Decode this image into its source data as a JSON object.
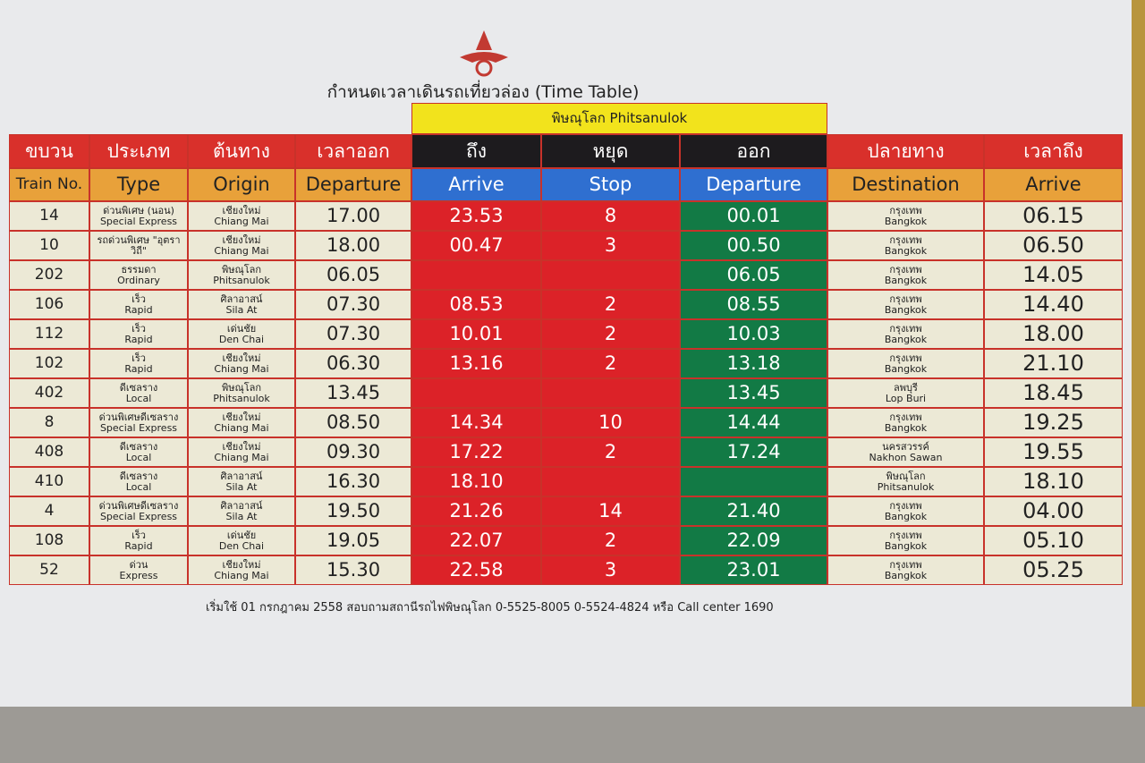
{
  "title": "กำหนดเวลาเดินรถเที่ยวล่อง (Time Table)",
  "section": "พิษณุโลก Phitsanulok",
  "columns": [
    {
      "th": "ขบวน",
      "en": "Train No."
    },
    {
      "th": "ประเภท",
      "en": "Type"
    },
    {
      "th": "ต้นทาง",
      "en": "Origin"
    },
    {
      "th": "เวลาออก",
      "en": "Departure"
    },
    {
      "th": "ถึง",
      "en": "Arrive"
    },
    {
      "th": "หยุด",
      "en": "Stop"
    },
    {
      "th": "ออก",
      "en": "Departure"
    },
    {
      "th": "ปลายทาง",
      "en": "Destination"
    },
    {
      "th": "เวลาถึง",
      "en": "Arrive"
    }
  ],
  "rows": [
    {
      "train_no": "14",
      "type_th": "ด่วนพิเศษ (นอน)",
      "type_en": "Special Express",
      "origin_th": "เชียงใหม่",
      "origin_en": "Chiang Mai",
      "departure": "17.00",
      "arrive": "23.53",
      "stop": "8",
      "phitsanulok_departure": "00.01",
      "destination_th": "กรุงเทพ",
      "destination_en": "Bangkok",
      "destination_arrive": "06.15"
    },
    {
      "train_no": "10",
      "type_th": "รถด่วนพิเศษ \"อุตราวิถี\"",
      "type_en": null,
      "origin_th": "เชียงใหม่",
      "origin_en": "Chiang Mai",
      "departure": "18.00",
      "arrive": "00.47",
      "stop": "3",
      "phitsanulok_departure": "00.50",
      "destination_th": "กรุงเทพ",
      "destination_en": "Bangkok",
      "destination_arrive": "06.50"
    },
    {
      "train_no": "202",
      "type_th": "ธรรมดา",
      "type_en": "Ordinary",
      "origin_th": "พิษณุโลก",
      "origin_en": "Phitsanulok",
      "departure": "06.05",
      "arrive": null,
      "stop": null,
      "phitsanulok_departure": "06.05",
      "destination_th": "กรุงเทพ",
      "destination_en": "Bangkok",
      "destination_arrive": "14.05"
    },
    {
      "train_no": "106",
      "type_th": "เร็ว",
      "type_en": "Rapid",
      "origin_th": "ศิลาอาสน์",
      "origin_en": "Sila At",
      "departure": "07.30",
      "arrive": "08.53",
      "stop": "2",
      "phitsanulok_departure": "08.55",
      "destination_th": "กรุงเทพ",
      "destination_en": "Bangkok",
      "destination_arrive": "14.40"
    },
    {
      "train_no": "112",
      "type_th": "เร็ว",
      "type_en": "Rapid",
      "origin_th": "เด่นชัย",
      "origin_en": "Den Chai",
      "departure": "07.30",
      "arrive": "10.01",
      "stop": "2",
      "phitsanulok_departure": "10.03",
      "destination_th": "กรุงเทพ",
      "destination_en": "Bangkok",
      "destination_arrive": "18.00"
    },
    {
      "train_no": "102",
      "type_th": "เร็ว",
      "type_en": "Rapid",
      "origin_th": "เชียงใหม่",
      "origin_en": "Chiang Mai",
      "departure": "06.30",
      "arrive": "13.16",
      "stop": "2",
      "phitsanulok_departure": "13.18",
      "destination_th": "กรุงเทพ",
      "destination_en": "Bangkok",
      "destination_arrive": "21.10"
    },
    {
      "train_no": "402",
      "type_th": "ดีเซลราง",
      "type_en": "Local",
      "origin_th": "พิษณุโลก",
      "origin_en": "Phitsanulok",
      "departure": "13.45",
      "arrive": null,
      "stop": null,
      "phitsanulok_departure": "13.45",
      "destination_th": "ลพบุรี",
      "destination_en": "Lop Buri",
      "destination_arrive": "18.45"
    },
    {
      "train_no": "8",
      "type_th": "ด่วนพิเศษดีเซลราง",
      "type_en": "Special Express",
      "origin_th": "เชียงใหม่",
      "origin_en": "Chiang Mai",
      "departure": "08.50",
      "arrive": "14.34",
      "stop": "10",
      "phitsanulok_departure": "14.44",
      "destination_th": "กรุงเทพ",
      "destination_en": "Bangkok",
      "destination_arrive": "19.25"
    },
    {
      "train_no": "408",
      "type_th": "ดีเซลราง",
      "type_en": "Local",
      "origin_th": "เชียงใหม่",
      "origin_en": "Chiang Mai",
      "departure": "09.30",
      "arrive": "17.22",
      "stop": "2",
      "phitsanulok_departure": "17.24",
      "destination_th": "นครสวรรค์",
      "destination_en": "Nakhon Sawan",
      "destination_arrive": "19.55"
    },
    {
      "train_no": "410",
      "type_th": "ดีเซลราง",
      "type_en": "Local",
      "origin_th": "ศิลาอาสน์",
      "origin_en": "Sila At",
      "departure": "16.30",
      "arrive": "18.10",
      "stop": null,
      "phitsanulok_departure": null,
      "destination_th": "พิษณุโลก",
      "destination_en": "Phitsanulok",
      "destination_arrive": "18.10"
    },
    {
      "train_no": "4",
      "type_th": "ด่วนพิเศษดีเซลราง",
      "type_en": "Special Express",
      "origin_th": "ศิลาอาสน์",
      "origin_en": "Sila At",
      "departure": "19.50",
      "arrive": "21.26",
      "stop": "14",
      "phitsanulok_departure": "21.40",
      "destination_th": "กรุงเทพ",
      "destination_en": "Bangkok",
      "destination_arrive": "04.00"
    },
    {
      "train_no": "108",
      "type_th": "เร็ว",
      "type_en": "Rapid",
      "origin_th": "เด่นชัย",
      "origin_en": "Den Chai",
      "departure": "19.05",
      "arrive": "22.07",
      "stop": "2",
      "phitsanulok_departure": "22.09",
      "destination_th": "กรุงเทพ",
      "destination_en": "Bangkok",
      "destination_arrive": "05.10"
    },
    {
      "train_no": "52",
      "type_th": "ด่วน",
      "type_en": "Express",
      "origin_th": "เชียงใหม่",
      "origin_en": "Chiang Mai",
      "departure": "15.30",
      "arrive": "22.58",
      "stop": "3",
      "phitsanulok_departure": "23.01",
      "destination_th": "กรุงเทพ",
      "destination_en": "Bangkok",
      "destination_arrive": "05.25"
    }
  ],
  "footer": "เริ่มใช้ 01 กรกฎาคม 2558 สอบถามสถานีรถไฟพิษณุโลก 0-5525-8005 0-5524-4824 หรือ Call center 1690"
}
